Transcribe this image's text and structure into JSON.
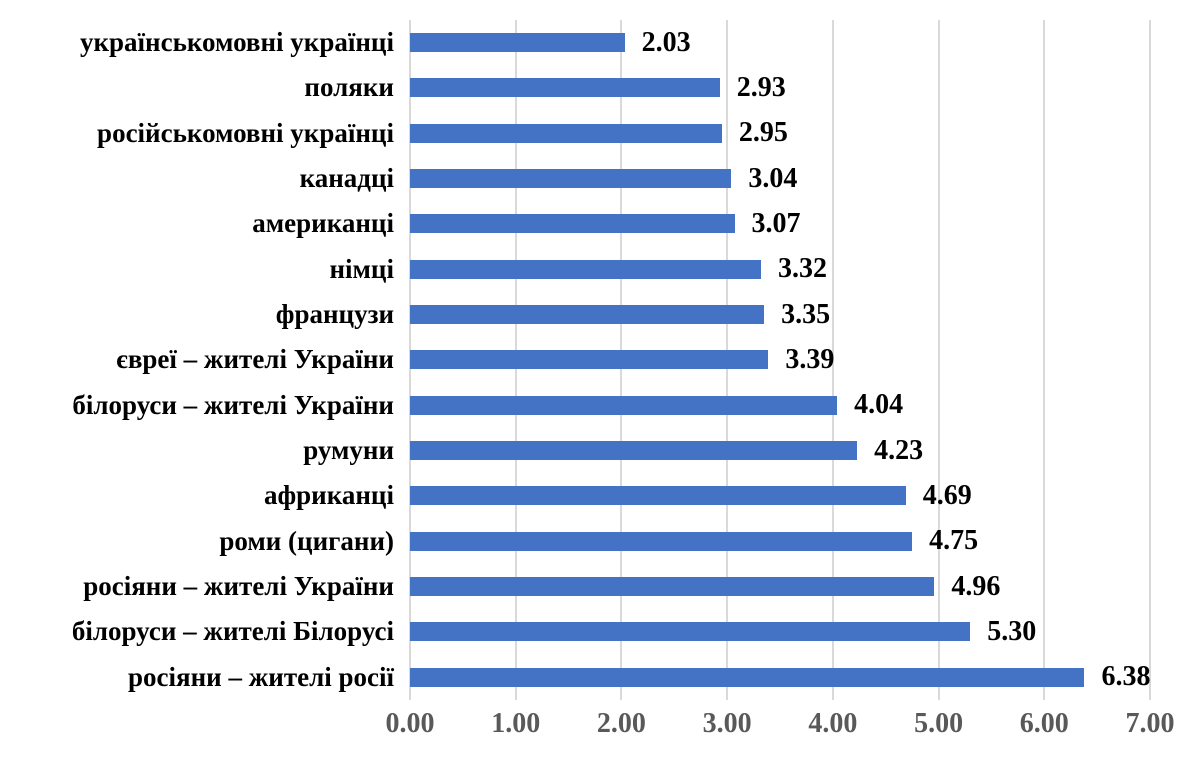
{
  "chart_data": {
    "type": "bar",
    "orientation": "horizontal",
    "title": "",
    "xlabel": "",
    "ylabel": "",
    "categories": [
      "українськомовні українці",
      "поляки",
      "російськомовні українці",
      "канадці",
      "американці",
      "німці",
      "французи",
      "євреї – жителі України",
      "білоруси – жителі України",
      "румуни",
      "африканці",
      "роми (цигани)",
      "росіяни – жителі України",
      "білоруси – жителі Білорусі",
      "росіяни – жителі росії"
    ],
    "values": [
      2.03,
      2.93,
      2.95,
      3.04,
      3.07,
      3.32,
      3.35,
      3.39,
      4.04,
      4.23,
      4.69,
      4.75,
      4.96,
      5.3,
      6.38
    ],
    "value_labels": [
      "2.03",
      "2.93",
      "2.95",
      "3.04",
      "3.07",
      "3.32",
      "3.35",
      "3.39",
      "4.04",
      "4.23",
      "4.69",
      "4.75",
      "4.96",
      "5.30",
      "6.38"
    ],
    "x_ticks": [
      "0.00",
      "1.00",
      "2.00",
      "3.00",
      "4.00",
      "5.00",
      "6.00",
      "7.00"
    ],
    "xlim": [
      0,
      7
    ],
    "grid": true,
    "legend": false,
    "colors": {
      "bar": "#4472C4",
      "gridline": "#D9D9D9",
      "tick_label": "#595959",
      "category_label": "#000000",
      "value_label": "#000000",
      "background": "#FFFFFF"
    }
  }
}
